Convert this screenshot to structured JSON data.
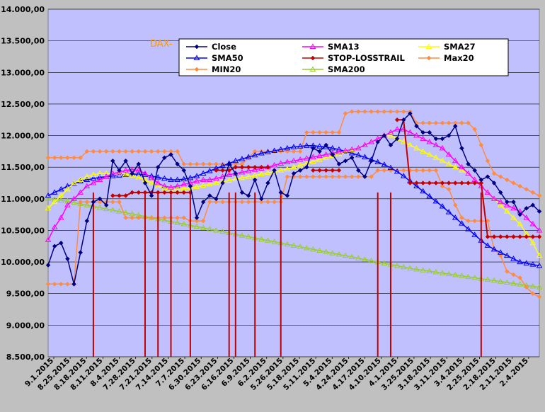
{
  "chart_data": {
    "type": "line",
    "title": "DAX-",
    "xlabel": "",
    "ylabel": "",
    "ylim": [
      8500,
      14000
    ],
    "y_ticks": [
      8500,
      9000,
      9500,
      10000,
      10500,
      11000,
      11500,
      12000,
      12500,
      13000,
      13500,
      14000
    ],
    "y_tick_labels": [
      "8.500,00",
      "9.000,00",
      "9.500,00",
      "10.000,00",
      "10.500,00",
      "11.000,00",
      "11.500,00",
      "12.000,00",
      "12.500,00",
      "13.000,00",
      "13.500,00",
      "14.000,00"
    ],
    "x_tick_labels": [
      "9.1.2015",
      "8.25.2015",
      "8.18.2015",
      "8.11.2015",
      "8.4.2015",
      "7.28.2015",
      "7.21.2015",
      "7.14.2015",
      "7.7.2015",
      "6.30.2015",
      "6.23.2015",
      "6.16.2015",
      "6.9.2015",
      "6.2.2015",
      "5.26.2015",
      "5.18.2015",
      "5.11.2015",
      "5.4.2015",
      "4.24.2015",
      "4.17.2015",
      "4.10.2015",
      "4.1.2015",
      "3.25.2015",
      "3.18.2015",
      "3.11.2015",
      "3.4.2015",
      "2.25.2015",
      "2.18.2015",
      "2.11.2015",
      "2.4.2015"
    ],
    "x_axis_order": "reversed dates, newest on the left",
    "grid": true,
    "legend_position": "top, inside plot",
    "colors": {
      "plot_background": "#C0C0FF",
      "outer_background": "#C0C0C0",
      "gridline": "#000000",
      "Close": "#000080",
      "SMA13": "#FF00FF",
      "SMA27": "#FFFF00",
      "SMA50": "#0000FF",
      "STOP-LOSSTRAIL": "#C00000",
      "Max20": "#FF8C40",
      "MIN20": "#FF8C40",
      "SMA200": "#99CC33",
      "title": "#FF9900"
    },
    "series": [
      {
        "name": "Close",
        "marker": "diamond",
        "values": [
          9950,
          10250,
          10300,
          10050,
          9650,
          10150,
          10650,
          10950,
          11000,
          10900,
          11600,
          11450,
          11600,
          11400,
          11550,
          11250,
          11050,
          11500,
          11650,
          11700,
          11550,
          11450,
          11200,
          10700,
          10950,
          11050,
          11000,
          11250,
          11550,
          11400,
          11100,
          11050,
          11300,
          11000,
          11250,
          11450,
          11100,
          11050,
          11400,
          11450,
          11500,
          11800,
          11750,
          11850,
          11700,
          11550,
          11600,
          11650,
          11450,
          11350,
          11600,
          11900,
          12000,
          11850,
          11950,
          12250,
          12350,
          12150,
          12050,
          12050,
          11950,
          11950,
          12000,
          12150,
          11800,
          11550,
          11450,
          11300,
          11350,
          11250,
          11100,
          10950,
          10950,
          10750,
          10850,
          10900,
          10800
        ]
      },
      {
        "name": "SMA13",
        "marker": "triangle",
        "values": [
          10350,
          10550,
          10700,
          10900,
          11000,
          11100,
          11200,
          11250,
          11300,
          11350,
          11400,
          11420,
          11450,
          11460,
          11450,
          11400,
          11330,
          11250,
          11200,
          11180,
          11200,
          11230,
          11250,
          11280,
          11300,
          11300,
          11320,
          11350,
          11380,
          11400,
          11420,
          11440,
          11460,
          11480,
          11500,
          11530,
          11560,
          11580,
          11600,
          11620,
          11640,
          11660,
          11680,
          11700,
          11720,
          11740,
          11760,
          11780,
          11800,
          11850,
          11900,
          11950,
          12000,
          12050,
          12100,
          12100,
          12050,
          12000,
          11950,
          11900,
          11850,
          11800,
          11700,
          11600,
          11500,
          11400,
          11300,
          11200,
          11100,
          11000,
          10950,
          10900,
          10850,
          10800,
          10700,
          10600,
          10500
        ]
      },
      {
        "name": "SMA27",
        "marker": "triangle",
        "values": [
          10850,
          10950,
          11050,
          11150,
          11250,
          11300,
          11350,
          11380,
          11400,
          11400,
          11400,
          11400,
          11390,
          11370,
          11340,
          11300,
          11250,
          11200,
          11170,
          11150,
          11150,
          11160,
          11170,
          11190,
          11210,
          11230,
          11250,
          11270,
          11290,
          11310,
          11330,
          11350,
          11370,
          11390,
          11410,
          11430,
          11450,
          11470,
          11500,
          11530,
          11560,
          11590,
          11620,
          11650,
          11680,
          11710,
          11740,
          11770,
          11800,
          11850,
          11900,
          11950,
          12000,
          12000,
          11950,
          11900,
          11850,
          11800,
          11750,
          11700,
          11650,
          11600,
          11550,
          11500,
          11450,
          11400,
          11300,
          11200,
          11100,
          11000,
          10900,
          10800,
          10700,
          10600,
          10450,
          10300,
          10100
        ]
      },
      {
        "name": "SMA50",
        "marker": "triangle",
        "values": [
          11050,
          11100,
          11150,
          11200,
          11240,
          11280,
          11300,
          11320,
          11340,
          11350,
          11360,
          11370,
          11380,
          11390,
          11390,
          11380,
          11360,
          11340,
          11320,
          11300,
          11300,
          11310,
          11330,
          11360,
          11400,
          11440,
          11480,
          11520,
          11560,
          11600,
          11630,
          11660,
          11690,
          11720,
          11740,
          11760,
          11780,
          11800,
          11820,
          11830,
          11840,
          11840,
          11830,
          11820,
          11800,
          11780,
          11750,
          11720,
          11690,
          11660,
          11620,
          11580,
          11540,
          11490,
          11430,
          11360,
          11280,
          11200,
          11120,
          11040,
          10960,
          10880,
          10790,
          10700,
          10610,
          10520,
          10430,
          10340,
          10260,
          10200,
          10150,
          10100,
          10050,
          10000,
          9980,
          9960,
          9940
        ]
      },
      {
        "name": "STOP-LOSSTRAIL",
        "marker": "diamond",
        "values": [
          null,
          null,
          null,
          null,
          null,
          null,
          null,
          null,
          null,
          null,
          11050,
          11050,
          11050,
          11100,
          11100,
          11100,
          11100,
          11100,
          11100,
          11100,
          11100,
          11100,
          11100,
          null,
          null,
          null,
          11450,
          11450,
          11450,
          11500,
          11500,
          11500,
          11500,
          11500,
          11500,
          null,
          null,
          null,
          null,
          null,
          null,
          11450,
          11450,
          11450,
          11450,
          11450,
          null,
          null,
          null,
          null,
          null,
          null,
          null,
          null,
          12250,
          12250,
          11250,
          11250,
          11250,
          11250,
          11250,
          11250,
          11250,
          11250,
          11250,
          11250,
          11250,
          11250,
          10400,
          10400,
          10400,
          10400,
          10400,
          10400,
          10400,
          10400,
          10400
        ]
      },
      {
        "name": "Max20",
        "marker": "diamond",
        "values": [
          11650,
          11650,
          11650,
          11650,
          11650,
          11650,
          11750,
          11750,
          11750,
          11750,
          11750,
          11750,
          11750,
          11750,
          11750,
          11750,
          11750,
          11750,
          11750,
          11750,
          11750,
          11550,
          11550,
          11550,
          11550,
          11550,
          11550,
          11550,
          11550,
          11550,
          11550,
          11650,
          11750,
          11750,
          11750,
          11750,
          11750,
          11750,
          11750,
          11750,
          12050,
          12050,
          12050,
          12050,
          12050,
          12050,
          12350,
          12380,
          12380,
          12380,
          12380,
          12380,
          12380,
          12380,
          12380,
          12380,
          12380,
          12200,
          12200,
          12200,
          12200,
          12200,
          12200,
          12200,
          12200,
          12200,
          12100,
          11850,
          11600,
          11400,
          11350,
          11300,
          11250,
          11200,
          11150,
          11100,
          11050
        ]
      },
      {
        "name": "MIN20",
        "marker": "diamond",
        "values": [
          9650,
          9650,
          9650,
          9650,
          9650,
          10950,
          10950,
          10950,
          10950,
          10950,
          10950,
          10950,
          10700,
          10700,
          10700,
          10700,
          10700,
          10700,
          10700,
          10700,
          10700,
          10700,
          10650,
          10650,
          10650,
          10950,
          10950,
          10950,
          10950,
          10950,
          10950,
          10950,
          10950,
          10950,
          10950,
          10950,
          10950,
          11350,
          11350,
          11350,
          11350,
          11350,
          11350,
          11350,
          11350,
          11350,
          11350,
          11350,
          11350,
          11350,
          11350,
          11450,
          11450,
          11450,
          11450,
          11450,
          11450,
          11450,
          11450,
          11450,
          11450,
          11200,
          11150,
          10900,
          10700,
          10650,
          10650,
          10650,
          10650,
          10200,
          10100,
          9850,
          9800,
          9750,
          9600,
          9500,
          9450
        ]
      },
      {
        "name": "SMA200",
        "marker": "triangle",
        "values": [
          11000,
          10990,
          10975,
          10960,
          10940,
          10920,
          10900,
          10880,
          10860,
          10840,
          10820,
          10800,
          10780,
          10760,
          10740,
          10720,
          10700,
          10680,
          10660,
          10640,
          10620,
          10600,
          10580,
          10560,
          10540,
          10520,
          10500,
          10480,
          10460,
          10440,
          10420,
          10400,
          10380,
          10360,
          10340,
          10320,
          10300,
          10280,
          10260,
          10240,
          10220,
          10200,
          10180,
          10160,
          10140,
          10120,
          10100,
          10080,
          10060,
          10040,
          10020,
          10000,
          9980,
          9960,
          9940,
          9920,
          9900,
          9885,
          9870,
          9855,
          9840,
          9825,
          9810,
          9795,
          9780,
          9765,
          9750,
          9735,
          9720,
          9705,
          9690,
          9675,
          9660,
          9645,
          9630,
          9615,
          9600
        ]
      }
    ],
    "signal_spikes_at_index": [
      7,
      15,
      17,
      19,
      22,
      28,
      29,
      32,
      36,
      51,
      53,
      67
    ]
  }
}
